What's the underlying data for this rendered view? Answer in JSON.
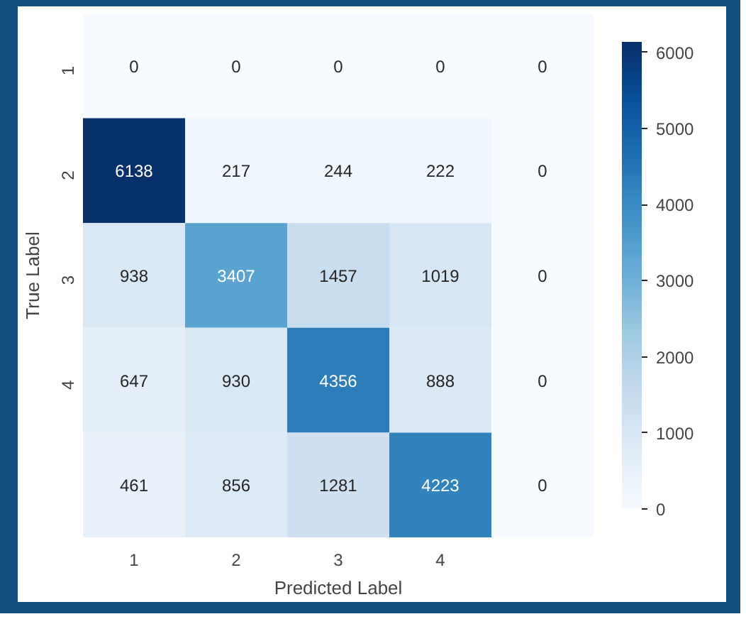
{
  "chart_data": {
    "type": "heatmap",
    "xlabel": "Predicted Label",
    "ylabel": "True Label",
    "categories": [
      "1",
      "2",
      "3",
      "4",
      null
    ],
    "y_categories": [
      "1",
      "2",
      "3",
      "4",
      null
    ],
    "cells": [
      [
        0,
        0,
        0,
        0,
        0
      ],
      [
        6138,
        217,
        244,
        222,
        0
      ],
      [
        938,
        3407,
        1457,
        1019,
        0
      ],
      [
        647,
        930,
        4356,
        888,
        0
      ],
      [
        461,
        856,
        1281,
        4223,
        0
      ]
    ],
    "data_labels": true,
    "clim": [
      0,
      6138
    ],
    "cticks": [
      0,
      1000,
      2000,
      3000,
      4000,
      5000,
      6000
    ]
  }
}
